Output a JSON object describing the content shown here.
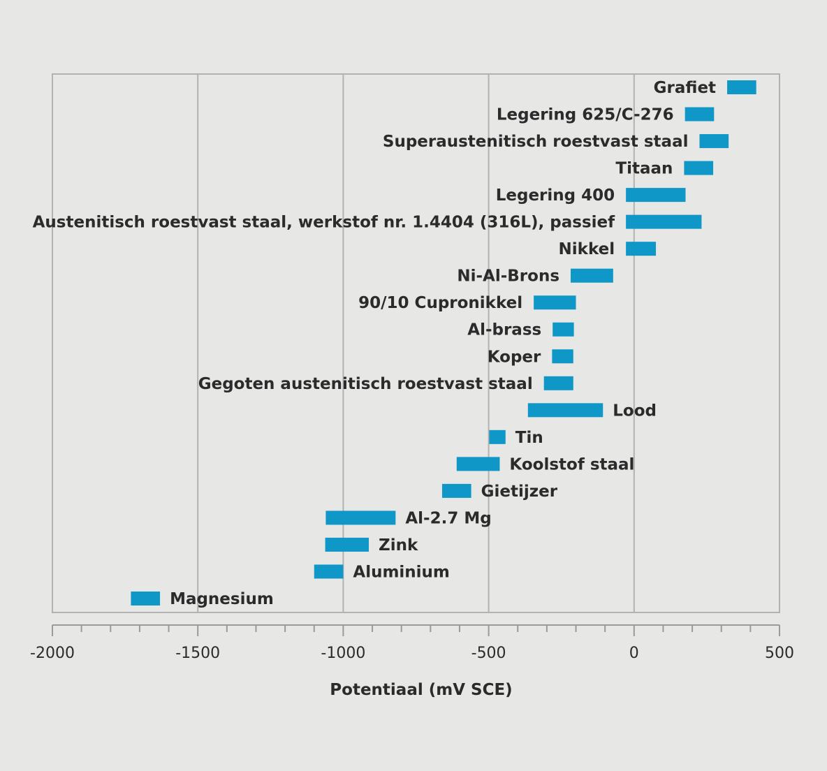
{
  "chart_data": {
    "type": "bar",
    "orientation": "horizontal-range",
    "xlabel": "Potentiaal (mV SCE)",
    "ylabel": "",
    "title": "",
    "xlim": [
      -2000,
      500
    ],
    "xticks": [
      -2000,
      -1500,
      -1000,
      -500,
      0,
      500
    ],
    "xtick_labels": [
      "-2000",
      "-1500",
      "-1000",
      "-500",
      "0",
      "500"
    ],
    "grid": true,
    "bar_color": "#0f97c8",
    "series": [
      {
        "label": "Grafiet",
        "start": 320,
        "end": 420,
        "label_side": "left"
      },
      {
        "label": "Legering 625/C-276",
        "start": 175,
        "end": 275,
        "label_side": "left"
      },
      {
        "label": "Superaustenitisch roestvast staal",
        "start": 225,
        "end": 325,
        "label_side": "left"
      },
      {
        "label": "Titaan",
        "start": 172,
        "end": 272,
        "label_side": "left"
      },
      {
        "label": "Legering 400",
        "start": -28,
        "end": 177,
        "label_side": "left"
      },
      {
        "label": "Austenitisch roestvast staal, werkstof nr. 1.4404 (316L), passief",
        "start": -28,
        "end": 232,
        "label_side": "left"
      },
      {
        "label": "Nikkel",
        "start": -28,
        "end": 75,
        "label_side": "left"
      },
      {
        "label": "Ni-Al-Brons",
        "start": -218,
        "end": -72,
        "label_side": "left"
      },
      {
        "label": "90/10 Cupronikkel",
        "start": -345,
        "end": -200,
        "label_side": "left"
      },
      {
        "label": "Al-brass",
        "start": -280,
        "end": -207,
        "label_side": "left"
      },
      {
        "label": "Koper",
        "start": -282,
        "end": -209,
        "label_side": "left"
      },
      {
        "label": "Gegoten austenitisch roestvast staal",
        "start": -310,
        "end": -209,
        "label_side": "left"
      },
      {
        "label": "Lood",
        "start": -365,
        "end": -107,
        "label_side": "right"
      },
      {
        "label": "Tin",
        "start": -498,
        "end": -442,
        "label_side": "right"
      },
      {
        "label": "Koolstof staal",
        "start": -610,
        "end": -462,
        "label_side": "right"
      },
      {
        "label": "Gietijzer",
        "start": -660,
        "end": -560,
        "label_side": "right"
      },
      {
        "label": "Al-2.7 Mg",
        "start": -1060,
        "end": -820,
        "label_side": "right"
      },
      {
        "label": "Zink",
        "start": -1062,
        "end": -912,
        "label_side": "right"
      },
      {
        "label": "Aluminium",
        "start": -1100,
        "end": -1000,
        "label_side": "right"
      },
      {
        "label": "Magnesium",
        "start": -1730,
        "end": -1630,
        "label_side": "right"
      }
    ]
  }
}
